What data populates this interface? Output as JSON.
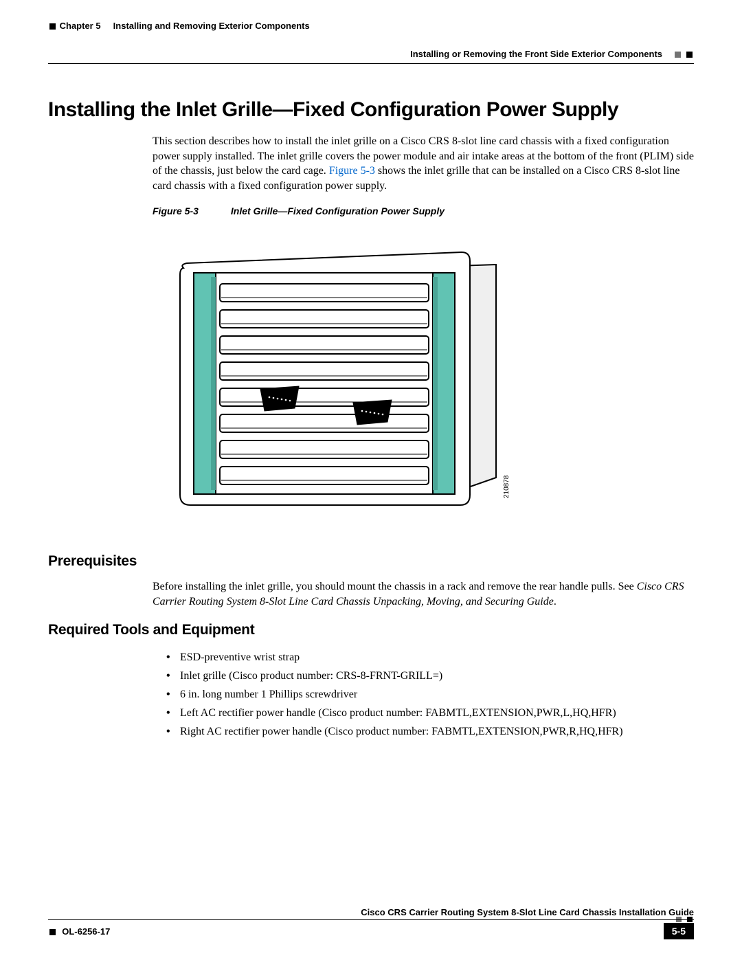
{
  "header": {
    "chapter": "Chapter 5",
    "chapter_title": "Installing and Removing Exterior Components",
    "section_title_right": "Installing or Removing the Front Side Exterior Components"
  },
  "title": "Installing the Inlet Grille—Fixed Configuration Power Supply",
  "intro": {
    "part1": "This section describes how to install the inlet grille on a Cisco CRS 8-slot line card chassis with a fixed configuration power supply installed. The inlet grille covers the power module and air intake areas at the bottom of the front (PLIM) side of the chassis, just below the card cage. ",
    "link": "Figure 5-3",
    "part2": " shows the inlet grille that can be installed on a Cisco CRS 8-slot line card chassis with a fixed configuration power supply."
  },
  "figure": {
    "label": "Figure 5-3",
    "caption": "Inlet Grille—Fixed Configuration Power Supply",
    "id_number": "210878",
    "colors": {
      "side_panel": "#61c3b3",
      "side_panel_shadow": "#4aa596",
      "grille_fill": "#ffffff",
      "stroke": "#000000",
      "back_fill": "#efefef"
    }
  },
  "prerequisites": {
    "heading": "Prerequisites",
    "text_part1": "Before installing the inlet grille, you should mount the chassis in a rack and remove the rear handle pulls. See ",
    "text_italic": "Cisco CRS Carrier Routing System 8-Slot Line Card Chassis Unpacking, Moving, and Securing Guide",
    "text_part2": "."
  },
  "tools": {
    "heading": "Required Tools and Equipment",
    "items": [
      "ESD-preventive wrist strap",
      "Inlet grille (Cisco product number: CRS-8-FRNT-GRILL=)",
      "6 in. long number 1 Phillips screwdriver",
      "Left AC rectifier power handle (Cisco product number: FABMTL,EXTENSION,PWR,L,HQ,HFR)",
      "Right AC rectifier power handle (Cisco product number: FABMTL,EXTENSION,PWR,R,HQ,HFR)"
    ]
  },
  "footer": {
    "doc_title": "Cisco CRS Carrier Routing System 8-Slot Line Card Chassis Installation Guide",
    "doc_number": "OL-6256-17",
    "page": "5-5"
  }
}
